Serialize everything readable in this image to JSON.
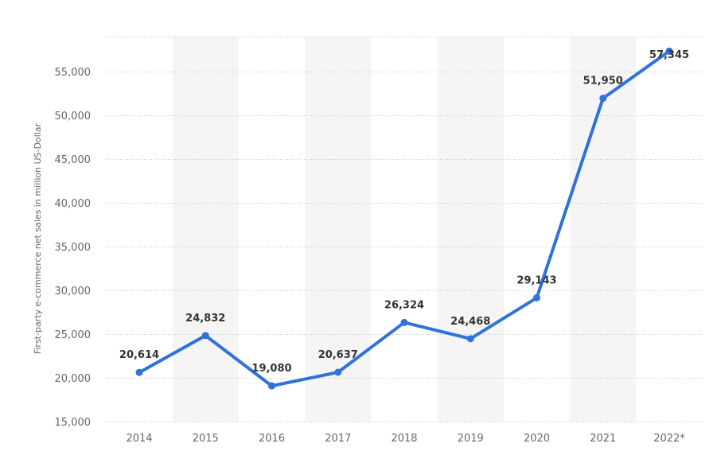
{
  "chart_data": {
    "type": "line",
    "categories": [
      "2014",
      "2015",
      "2016",
      "2017",
      "2018",
      "2019",
      "2020",
      "2021",
      "2022*"
    ],
    "series": [
      {
        "values": [
          20614,
          24832,
          19080,
          20637,
          26324,
          24468,
          29143,
          51950,
          57345
        ],
        "labels": [
          "20,614",
          "24,832",
          "19,080",
          "20,637",
          "26,324",
          "24,468",
          "29,143",
          "51,950",
          "57,345"
        ]
      }
    ],
    "ylabel": "First-party e-commerce net sales in million US-Dollar",
    "yticks": [
      15000,
      20000,
      25000,
      30000,
      35000,
      40000,
      45000,
      50000,
      55000
    ],
    "ytick_labels": [
      "15,000",
      "20,000",
      "25,000",
      "30,000",
      "35,000",
      "40,000",
      "45,000",
      "50,000",
      "55,000"
    ],
    "ylim": [
      15000,
      59000
    ],
    "grid": true,
    "colors": {
      "line": "#2f72dc",
      "grid": "#c7c7c7",
      "band": "#f5f5f5",
      "tick_text": "#666666",
      "label_text": "#333333"
    }
  }
}
